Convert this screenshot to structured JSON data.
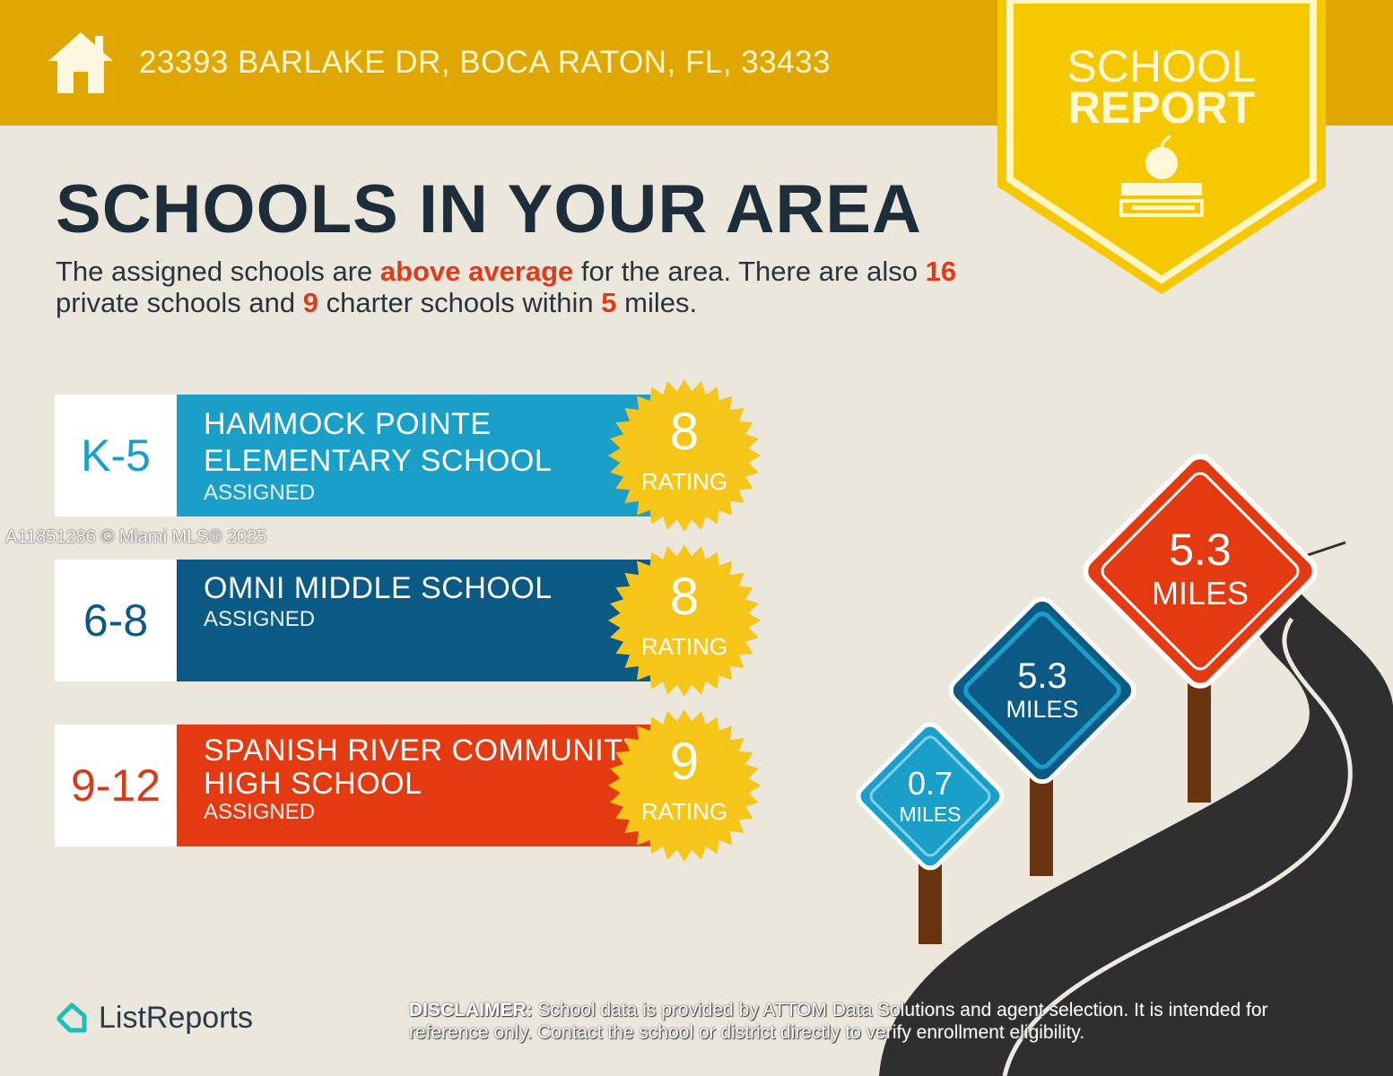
{
  "header": {
    "address": "23393 BARLAKE DR, BOCA RATON, FL, 33433",
    "icon": "house-icon"
  },
  "badge": {
    "line1": "SCHOOL",
    "line2": "REPORT",
    "icon": "apple-on-books-icon"
  },
  "title": "SCHOOLS IN YOUR AREA",
  "intro": {
    "p1": "The assigned schools are ",
    "h1": "above average",
    "p2": " for the area. There are also ",
    "h2": "16",
    "p3": " private schools and ",
    "h3": "9",
    "p4": " charter schools within ",
    "h4": "5",
    "p5": " miles."
  },
  "watermark": "A11851286 © Miami MLS® 2025",
  "schools": [
    {
      "grade": "K-5",
      "name_line1": "HAMMOCK POINTE",
      "name_line2": "ELEMENTARY SCHOOL",
      "status": "ASSIGNED",
      "rating": "8",
      "rating_label": "RATING",
      "color": "#1aa0c8"
    },
    {
      "grade": "6-8",
      "name_line1": "OMNI MIDDLE SCHOOL",
      "name_line2": "",
      "status": "ASSIGNED",
      "rating": "8",
      "rating_label": "RATING",
      "color": "#0a5a85"
    },
    {
      "grade": "9-12",
      "name_line1": "SPANISH RIVER COMMUNITY",
      "name_line2": "HIGH SCHOOL",
      "status": "ASSIGNED",
      "rating": "9",
      "rating_label": "RATING",
      "color": "#e33a12"
    }
  ],
  "signs": [
    {
      "distance": "0.7",
      "unit": "MILES",
      "color": "#1aa0c8"
    },
    {
      "distance": "5.3",
      "unit": "MILES",
      "color": "#0a5a85"
    },
    {
      "distance": "5.3",
      "unit": "MILES",
      "color": "#e33a12"
    }
  ],
  "footer": {
    "logo": "ListReports",
    "disclaimer_label": "DISCLAIMER:",
    "disclaimer_text": " School data is provided by ATTOM Data Solutions and agent selection. It is intended for reference only. Contact the school or district directly to verify enrollment eligibility."
  }
}
